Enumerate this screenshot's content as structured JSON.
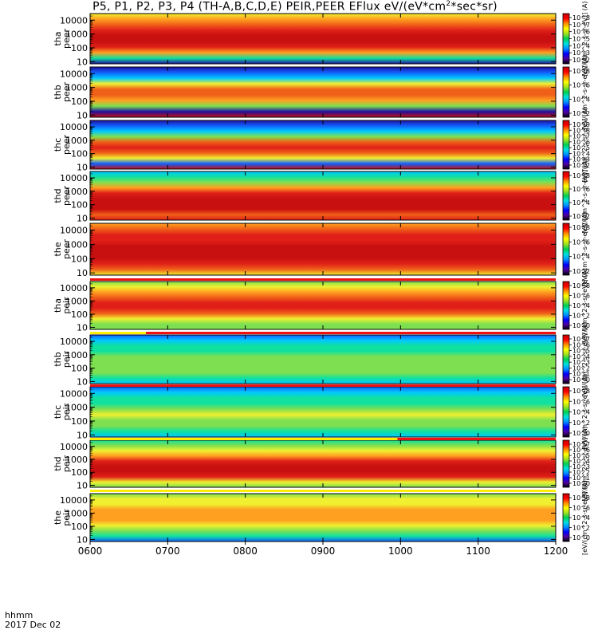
{
  "title": {
    "prefix": "P5, P1, P2, P3, P4 (TH-A,B,C,D,E) PEIR,PEER EFlux eV/(eV*cm",
    "sup": "2",
    "suffix": "*sec*sr)"
  },
  "footer": {
    "label1": "hhmm",
    "label2": "2017 Dec 02"
  },
  "colorbar_label": "[eV/(cm^2-s-sr-eV)] (A)",
  "colors": {
    "spectrogram": [
      "#2010a0",
      "#1060ff",
      "#00c8ff",
      "#10e0a0",
      "#7ee050",
      "#f0f030",
      "#ffa020",
      "#f06018",
      "#e02018",
      "#c81010"
    ],
    "colorbar": [
      "#000000",
      "#5000a0",
      "#0000ff",
      "#0090ff",
      "#00e0e0",
      "#00d050",
      "#a0e020",
      "#ffff00",
      "#ff9000",
      "#ff0000",
      "#c00000"
    ],
    "flag_red": "#ee1111",
    "flag_yellow": "#ffee00"
  },
  "chart_data": {
    "type": "heatmap",
    "x_axis": {
      "ticks": [
        "0600",
        "0700",
        "0800",
        "0900",
        "1000",
        "1100",
        "1200"
      ],
      "range": [
        "06:00",
        "12:00"
      ]
    },
    "y_axis": {
      "scale": "log",
      "range": [
        7,
        30000
      ],
      "ticks": [
        "10",
        "100",
        "1000",
        "10000"
      ]
    },
    "panels": [
      {
        "ylabel": [
          "tha",
          "peer"
        ],
        "cbar_ticks": [
          "10^8",
          "10^7",
          "10^6",
          "10^5",
          "10^4",
          "10^3",
          "10^2"
        ]
      },
      {
        "ylabel": [
          "thb",
          "peer"
        ],
        "cbar_ticks": [
          "10^8",
          "10^6",
          "10^4",
          "10^2"
        ]
      },
      {
        "ylabel": [
          "thc",
          "peer"
        ],
        "cbar_ticks": [
          "10^9",
          "10^8",
          "10^7",
          "10^6",
          "10^5",
          "10^4",
          "10^3",
          "10^2"
        ]
      },
      {
        "ylabel": [
          "thd",
          "peer"
        ],
        "cbar_ticks": [
          "10^8",
          "10^6",
          "10^4",
          "10^2"
        ]
      },
      {
        "ylabel": [
          "the",
          "peer"
        ],
        "cbar_ticks": [
          "10^8",
          "10^6",
          "10^4",
          "10^2"
        ]
      },
      {
        "ylabel": [
          "tha",
          "peir"
        ],
        "cbar_ticks": [
          "10^8",
          "10^6",
          "10^4",
          "10^2",
          "10^0"
        ]
      },
      {
        "ylabel": [
          "thb",
          "peir"
        ],
        "cbar_ticks": [
          "10^7",
          "10^6",
          "10^5",
          "10^4",
          "10^3",
          "10^2",
          "10^1",
          "10^0"
        ]
      },
      {
        "ylabel": [
          "thc",
          "peir"
        ],
        "cbar_ticks": [
          "10^8",
          "10^6",
          "10^4",
          "10^2",
          "10^0"
        ]
      },
      {
        "ylabel": [
          "thd",
          "peir"
        ],
        "cbar_ticks": [
          "10^7",
          "10^6",
          "10^5",
          "10^4",
          "10^3",
          "10^2",
          "10^1",
          "10^0"
        ]
      },
      {
        "ylabel": [
          "the",
          "peir"
        ],
        "cbar_ticks": [
          "10^8",
          "10^6",
          "10^4",
          "10^2",
          "10^0"
        ]
      }
    ]
  }
}
